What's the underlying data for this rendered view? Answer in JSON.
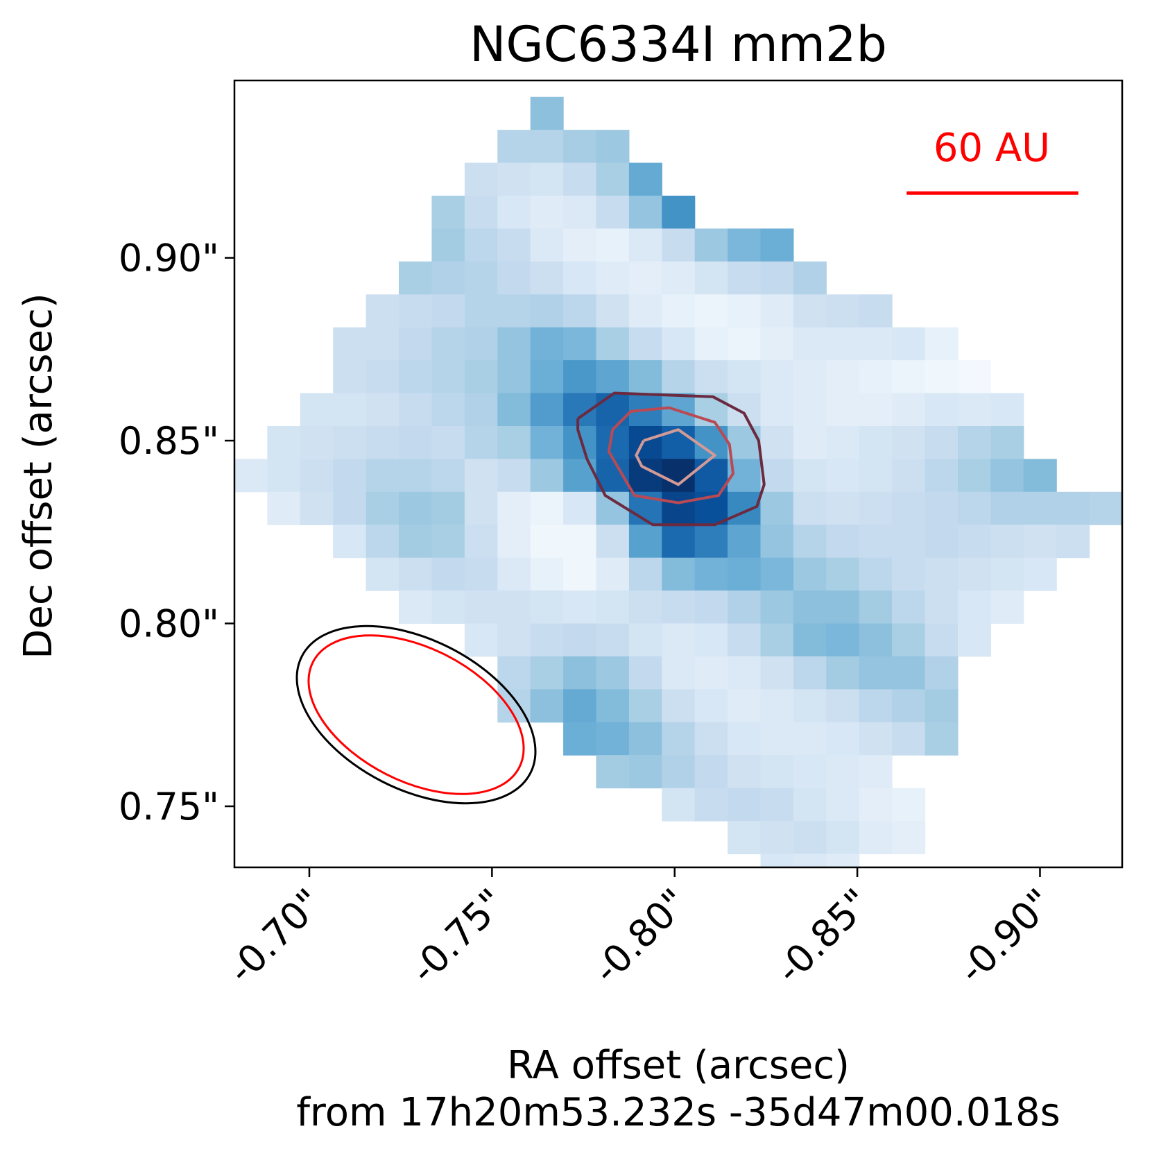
{
  "chart_data": {
    "type": "heatmap",
    "title": "NGC6334I mm2b",
    "xlabel": "RA offset (arcsec)",
    "xlabel_sub": "from 17h20m53.232s -35d47m00.018s",
    "ylabel": "Dec offset (arcsec)",
    "x_ticks": [
      {
        "value": -0.7,
        "label": "-0.70\""
      },
      {
        "value": -0.75,
        "label": "-0.75\""
      },
      {
        "value": -0.8,
        "label": "-0.80\""
      },
      {
        "value": -0.85,
        "label": "-0.85\""
      },
      {
        "value": -0.9,
        "label": "-0.90\""
      }
    ],
    "y_ticks": [
      {
        "value": 0.9,
        "label": "0.90\""
      },
      {
        "value": 0.85,
        "label": "0.85\""
      },
      {
        "value": 0.8,
        "label": "0.80\""
      },
      {
        "value": 0.75,
        "label": "0.75\""
      }
    ],
    "xlim": [
      -0.6795,
      -0.9225
    ],
    "ylim": [
      0.7333,
      0.9485
    ],
    "x_direction": "decreasing to the right",
    "grid": false,
    "colormap": "Blues",
    "pixel_size_arcsec": 0.009,
    "first_row_dec": 0.9395,
    "first_col_ra": -0.6795,
    "image_rows": [
      "..........40.............",
      "..........,33...........",
      ".........4,55..........",
      "........3.5ccd.",
      "......44..45..",
      "......4.5.54..",
      "......2,3.1..........",
      "......,24,4....2.....",
      ".....3,3.13..........",
      ".....,3.5.2....",
      ".....7.53,5..........",
      ".....4,4,5.2..5.3.5,.",
      ".....,4...5.4..3..4..",
      "......,4..2.2..1...2.",
      "......,3,,2,3,..2,,3.",
      ".....,,,3.1.2,..2,,.",
      "......2,.2..3,..3,3,,",
      "......,3..3,..2,.",
      "......,2...1.1..1.....",
      ".......,............"
    ],
    "image_values": [
      [
        null,
        null,
        null,
        null,
        null,
        null,
        null,
        null,
        null,
        0.42,
        null,
        null,
        null,
        null,
        null,
        null,
        null,
        null,
        null,
        null,
        null,
        null,
        null,
        null,
        null,
        null,
        null
      ],
      [
        null,
        null,
        null,
        null,
        null,
        null,
        null,
        null,
        0.3,
        0.3,
        0.35,
        0.38,
        null,
        null,
        null,
        null,
        null,
        null,
        null,
        null,
        null,
        null,
        null,
        null,
        null,
        null,
        null
      ],
      [
        null,
        null,
        null,
        null,
        null,
        null,
        null,
        0.22,
        0.2,
        0.18,
        0.24,
        0.34,
        0.52,
        null,
        null,
        null,
        null,
        null,
        null,
        null,
        null,
        null,
        null,
        null,
        null,
        null,
        null
      ],
      [
        null,
        null,
        null,
        null,
        null,
        null,
        0.34,
        0.24,
        0.16,
        0.12,
        0.14,
        0.24,
        0.4,
        0.62,
        null,
        null,
        null,
        null,
        null,
        null,
        null,
        null,
        null,
        null,
        null,
        null,
        null
      ],
      [
        null,
        null,
        null,
        null,
        null,
        null,
        0.36,
        0.28,
        0.24,
        0.14,
        0.1,
        0.08,
        0.14,
        0.24,
        0.38,
        0.46,
        0.5,
        null,
        null,
        null,
        null,
        null,
        null,
        null,
        null,
        null,
        null
      ],
      [
        null,
        null,
        null,
        null,
        null,
        0.34,
        0.32,
        0.3,
        0.26,
        0.22,
        0.16,
        0.12,
        0.1,
        0.12,
        0.18,
        0.24,
        0.26,
        0.32,
        null,
        null,
        null,
        null,
        null,
        null,
        null,
        null,
        null
      ],
      [
        null,
        null,
        null,
        null,
        0.22,
        0.24,
        0.26,
        0.3,
        0.3,
        0.32,
        0.28,
        0.2,
        0.12,
        0.08,
        0.06,
        0.08,
        0.12,
        0.2,
        0.22,
        0.24,
        null,
        null,
        null,
        null,
        null,
        null,
        null
      ],
      [
        null,
        null,
        null,
        0.22,
        0.22,
        0.26,
        0.3,
        0.32,
        0.4,
        0.48,
        0.46,
        0.34,
        0.24,
        0.16,
        0.08,
        0.06,
        0.1,
        0.14,
        0.14,
        0.14,
        0.16,
        0.08,
        null,
        null,
        null,
        null,
        null
      ],
      [
        null,
        null,
        null,
        0.22,
        0.24,
        0.28,
        0.3,
        0.34,
        0.4,
        0.5,
        0.6,
        0.54,
        0.44,
        0.3,
        0.22,
        0.18,
        0.14,
        0.12,
        0.1,
        0.08,
        0.06,
        0.04,
        0.02,
        null,
        null,
        null,
        null
      ],
      [
        null,
        null,
        0.18,
        0.18,
        0.2,
        0.24,
        0.28,
        0.32,
        0.44,
        0.58,
        0.72,
        0.8,
        0.7,
        0.54,
        0.34,
        0.22,
        0.14,
        0.12,
        0.1,
        0.1,
        0.12,
        0.16,
        0.14,
        0.16,
        null,
        null,
        null
      ],
      [
        null,
        0.18,
        0.2,
        0.22,
        0.24,
        0.26,
        0.24,
        0.3,
        0.34,
        0.48,
        0.62,
        0.78,
        0.9,
        0.82,
        0.62,
        0.38,
        0.2,
        0.12,
        0.14,
        0.18,
        0.2,
        0.24,
        0.3,
        0.34,
        null,
        null,
        null
      ],
      [
        0.14,
        0.18,
        0.22,
        0.26,
        0.3,
        0.3,
        0.28,
        0.2,
        0.24,
        0.38,
        0.56,
        0.8,
        0.96,
        1.0,
        0.84,
        0.48,
        0.26,
        0.18,
        0.16,
        0.18,
        0.22,
        0.28,
        0.34,
        0.4,
        0.44,
        null,
        null
      ],
      [
        null,
        0.12,
        0.2,
        0.26,
        0.34,
        0.38,
        0.36,
        0.2,
        0.1,
        0.06,
        0.16,
        0.4,
        0.74,
        0.92,
        0.88,
        0.66,
        0.38,
        0.22,
        0.2,
        0.22,
        0.24,
        0.26,
        0.28,
        0.32,
        0.32,
        0.32,
        0.3
      ],
      [
        null,
        null,
        null,
        0.16,
        0.28,
        0.36,
        0.34,
        0.22,
        0.1,
        0.04,
        0.04,
        0.22,
        0.56,
        0.78,
        0.7,
        0.54,
        0.4,
        0.3,
        0.26,
        0.24,
        0.24,
        0.26,
        0.24,
        0.22,
        0.2,
        0.22,
        null
      ],
      [
        null,
        null,
        null,
        null,
        0.18,
        0.22,
        0.26,
        0.24,
        0.14,
        0.08,
        0.04,
        0.12,
        0.28,
        0.44,
        0.48,
        0.5,
        0.46,
        0.38,
        0.34,
        0.28,
        0.24,
        0.22,
        0.2,
        0.18,
        0.16,
        null,
        null
      ],
      [
        null,
        null,
        null,
        null,
        null,
        0.14,
        0.18,
        0.2,
        0.2,
        0.18,
        0.16,
        0.18,
        0.22,
        0.24,
        0.26,
        0.32,
        0.38,
        0.42,
        0.42,
        0.36,
        0.28,
        0.22,
        0.16,
        0.12,
        null,
        null,
        null
      ],
      [
        null,
        null,
        null,
        null,
        null,
        null,
        null,
        0.16,
        0.2,
        0.24,
        0.26,
        0.24,
        0.18,
        0.14,
        0.16,
        0.24,
        0.34,
        0.44,
        0.46,
        0.42,
        0.34,
        0.24,
        0.16,
        null,
        null,
        null,
        null
      ],
      [
        null,
        null,
        null,
        null,
        null,
        null,
        null,
        null,
        0.28,
        0.34,
        0.42,
        0.38,
        0.26,
        0.14,
        0.12,
        0.14,
        0.2,
        0.28,
        0.36,
        0.4,
        0.4,
        0.32,
        null,
        null,
        null,
        null,
        null
      ],
      [
        null,
        null,
        null,
        null,
        null,
        null,
        null,
        null,
        0.3,
        0.42,
        0.52,
        0.44,
        0.34,
        0.22,
        0.16,
        0.12,
        0.14,
        0.18,
        0.22,
        0.28,
        0.32,
        0.36,
        null,
        null,
        null,
        null,
        null
      ],
      [
        null,
        null,
        null,
        null,
        null,
        null,
        null,
        null,
        null,
        null,
        0.5,
        0.48,
        0.42,
        0.3,
        0.22,
        0.16,
        0.14,
        0.14,
        0.16,
        0.2,
        0.24,
        0.34,
        null,
        null,
        null,
        null,
        null
      ],
      [
        null,
        null,
        null,
        null,
        null,
        null,
        null,
        null,
        null,
        null,
        null,
        0.36,
        0.38,
        0.32,
        0.26,
        0.2,
        0.18,
        0.16,
        0.14,
        0.12,
        null,
        null,
        null,
        null,
        null,
        null,
        null
      ],
      [
        null,
        null,
        null,
        null,
        null,
        null,
        null,
        null,
        null,
        null,
        null,
        null,
        null,
        0.18,
        0.24,
        0.26,
        0.24,
        0.18,
        0.14,
        0.1,
        0.08,
        null,
        null,
        null,
        null,
        null,
        null
      ],
      [
        null,
        null,
        null,
        null,
        null,
        null,
        null,
        null,
        null,
        null,
        null,
        null,
        null,
        null,
        null,
        0.18,
        0.2,
        0.22,
        0.18,
        0.12,
        0.1,
        null,
        null,
        null,
        null,
        null,
        null
      ],
      [
        null,
        null,
        null,
        null,
        null,
        null,
        null,
        null,
        null,
        null,
        null,
        null,
        null,
        null,
        null,
        null,
        0.16,
        0.14,
        0.12,
        null,
        null,
        null,
        null,
        null,
        null,
        null,
        null
      ]
    ],
    "contours": [
      {
        "color": "#6b2a3f",
        "points": [
          [
            -0.7735,
            0.856
          ],
          [
            -0.7835,
            0.863
          ],
          [
            -0.8105,
            0.862
          ],
          [
            -0.819,
            0.8575
          ],
          [
            -0.823,
            0.85
          ],
          [
            -0.8245,
            0.838
          ],
          [
            -0.8225,
            0.832
          ],
          [
            -0.811,
            0.827
          ],
          [
            -0.794,
            0.827
          ],
          [
            -0.781,
            0.835
          ],
          [
            -0.776,
            0.845
          ],
          [
            -0.7735,
            0.853
          ],
          [
            -0.7735,
            0.856
          ]
        ]
      },
      {
        "color": "#b94a54",
        "points": [
          [
            -0.783,
            0.853
          ],
          [
            -0.788,
            0.858
          ],
          [
            -0.7985,
            0.859
          ],
          [
            -0.811,
            0.855
          ],
          [
            -0.815,
            0.849
          ],
          [
            -0.816,
            0.841
          ],
          [
            -0.812,
            0.835
          ],
          [
            -0.801,
            0.833
          ],
          [
            -0.789,
            0.835
          ],
          [
            -0.782,
            0.847
          ],
          [
            -0.783,
            0.853
          ]
        ]
      },
      {
        "color": "#d49a95",
        "points": [
          [
            -0.7915,
            0.85
          ],
          [
            -0.801,
            0.853
          ],
          [
            -0.811,
            0.846
          ],
          [
            -0.801,
            0.838
          ],
          [
            -0.791,
            0.843
          ],
          [
            -0.7895,
            0.846
          ],
          [
            -0.7915,
            0.85
          ]
        ]
      }
    ],
    "beams": [
      {
        "color": "#000000",
        "center_ra": -0.7,
        "center_dec": 0.7765,
        "note": "outer beam ellipse"
      },
      {
        "color": "#ff0000",
        "center_ra": -0.7,
        "center_dec": 0.7765,
        "note": "inner beam ellipse"
      }
    ],
    "scalebar": {
      "label": "60 AU",
      "color": "#ff0000",
      "ra_start": -0.8635,
      "ra_end": -0.9105,
      "dec": 0.9177
    }
  }
}
